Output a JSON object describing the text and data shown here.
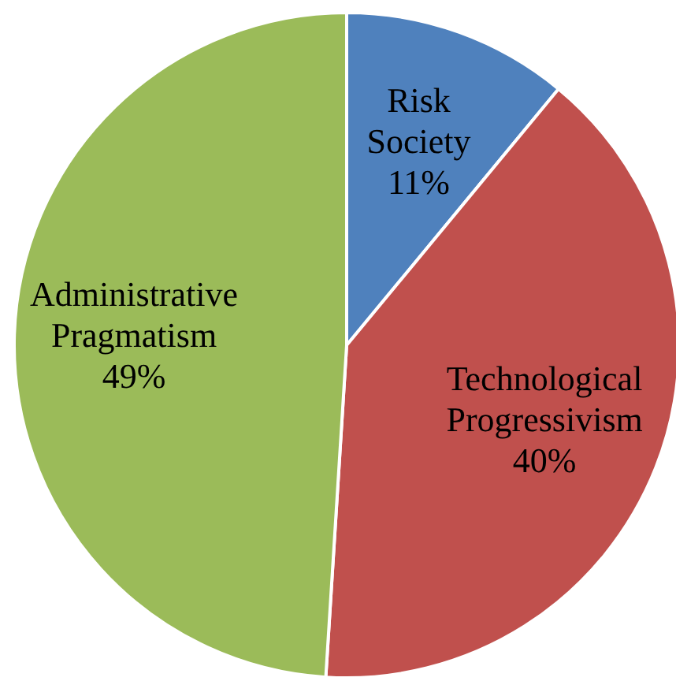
{
  "chart_data": {
    "type": "pie",
    "categories": [
      "Risk Society",
      "Technological Progressivism",
      "Administrative Pragmatism"
    ],
    "values": [
      11,
      40,
      49
    ],
    "value_labels": [
      "11%",
      "40%",
      "49%"
    ],
    "colors": [
      "#4f81bd",
      "#c0504d",
      "#9bbb59"
    ]
  }
}
